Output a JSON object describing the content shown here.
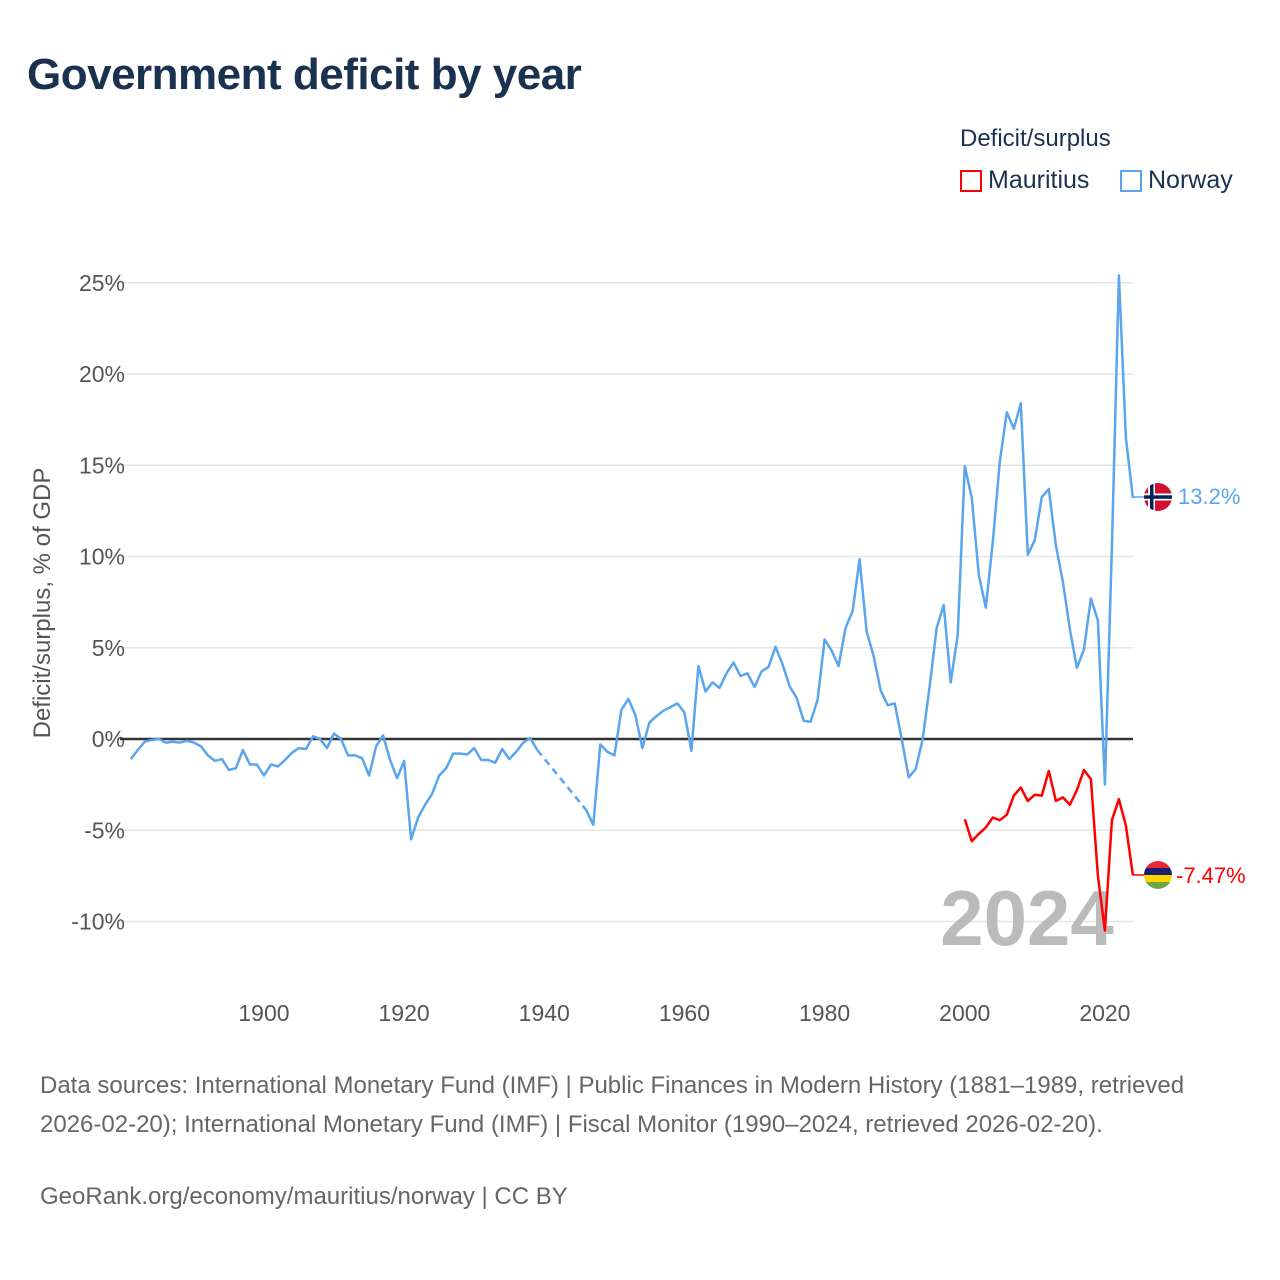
{
  "title": "Government deficit by year",
  "legend": {
    "title": "Deficit/surplus",
    "items": [
      {
        "label": "Mauritius",
        "color": "#ff0000"
      },
      {
        "label": "Norway",
        "color": "#5aa5ee"
      }
    ]
  },
  "watermark_year": "2024",
  "footer": {
    "sources": "Data sources: International Monetary Fund (IMF) | Public Finances in Modern History (1881–1989, retrieved 2026-02-20); International Monetary Fund (IMF) | Fiscal Monitor (1990–2024, retrieved 2026-02-20).",
    "credit": "GeoRank.org/economy/mauritius/norway | CC BY"
  },
  "chart_data": {
    "type": "line",
    "title": "Government deficit by year",
    "xlabel": "",
    "ylabel": "Deficit/surplus, % of GDP",
    "xlim": [
      1881,
      2024
    ],
    "ylim": [
      -12,
      26
    ],
    "x_ticks": [
      "1900",
      "1920",
      "1940",
      "1960",
      "1980",
      "2000",
      "2020"
    ],
    "x_tick_values": [
      1900,
      1920,
      1940,
      1960,
      1980,
      2000,
      2020
    ],
    "y_ticks": [
      "25%",
      "20%",
      "15%",
      "10%",
      "5%",
      "0%",
      "-5%",
      "-10%"
    ],
    "y_tick_values": [
      25,
      20,
      15,
      10,
      5,
      0,
      -5,
      -10
    ],
    "grid": true,
    "legend_position": "top-right",
    "series": [
      {
        "name": "Norway",
        "color": "#5aa5ee",
        "start_year": 1881,
        "end_label": "13.2%",
        "values": [
          -1.1,
          -0.6,
          -0.15,
          -0.05,
          0,
          -0.2,
          -0.15,
          -0.2,
          -0.1,
          -0.2,
          -0.4,
          -0.9,
          -1.2,
          -1.1,
          -1.7,
          -1.6,
          -0.6,
          -1.4,
          -1.4,
          -2.0,
          -1.4,
          -1.5,
          -1.15,
          -0.75,
          -0.5,
          -0.55,
          0.15,
          0,
          -0.5,
          0.3,
          0,
          -0.9,
          -0.9,
          -1.05,
          -2.0,
          -0.4,
          0.2,
          -1.15,
          -2.15,
          -1.2,
          -5.5,
          -4.3,
          -3.6,
          -3.0,
          -2.0,
          -1.6,
          -0.8,
          -0.8,
          -0.85,
          -0.5,
          -1.15,
          -1.15,
          -1.3,
          -0.55,
          -1.1,
          -0.7,
          -0.2,
          0.05,
          -0.6,
          null,
          null,
          null,
          null,
          null,
          null,
          -3.9,
          -4.7,
          -0.3,
          -0.7,
          -0.9,
          1.6,
          2.2,
          1.3,
          -0.5,
          0.9,
          1.25,
          1.55,
          1.75,
          1.95,
          1.45,
          -0.65,
          4.0,
          2.6,
          3.1,
          2.8,
          3.6,
          4.2,
          3.45,
          3.6,
          2.85,
          3.7,
          3.95,
          5.05,
          4.1,
          2.9,
          2.25,
          1.0,
          0.95,
          2.15,
          5.45,
          4.85,
          4.0,
          6.1,
          7.0,
          9.85,
          5.9,
          4.55,
          2.65,
          1.85,
          1.95,
          0,
          -2.1,
          -1.65,
          0,
          2.9,
          6.1,
          7.35,
          3.1,
          5.7,
          14.95,
          13.2,
          9.0,
          7.2,
          10.8,
          15.2,
          17.9,
          17.0,
          18.4,
          10.1,
          10.9,
          13.25,
          13.7,
          10.6,
          8.6,
          6.0,
          3.9,
          4.9,
          7.7,
          6.5,
          -2.5,
          10.5,
          25.4,
          16.5,
          13.2
        ]
      },
      {
        "name": "Mauritius",
        "color": "#ff0000",
        "start_year": 2000,
        "end_label": "-7.47%",
        "values": [
          -4.4,
          -5.6,
          -5.2,
          -4.85,
          -4.3,
          -4.45,
          -4.15,
          -3.1,
          -2.65,
          -3.4,
          -3.05,
          -3.1,
          -1.75,
          -3.4,
          -3.2,
          -3.6,
          -2.8,
          -1.7,
          -2.2,
          -7.5,
          -10.5,
          -4.45,
          -3.3,
          -4.75,
          -7.47
        ]
      }
    ]
  }
}
